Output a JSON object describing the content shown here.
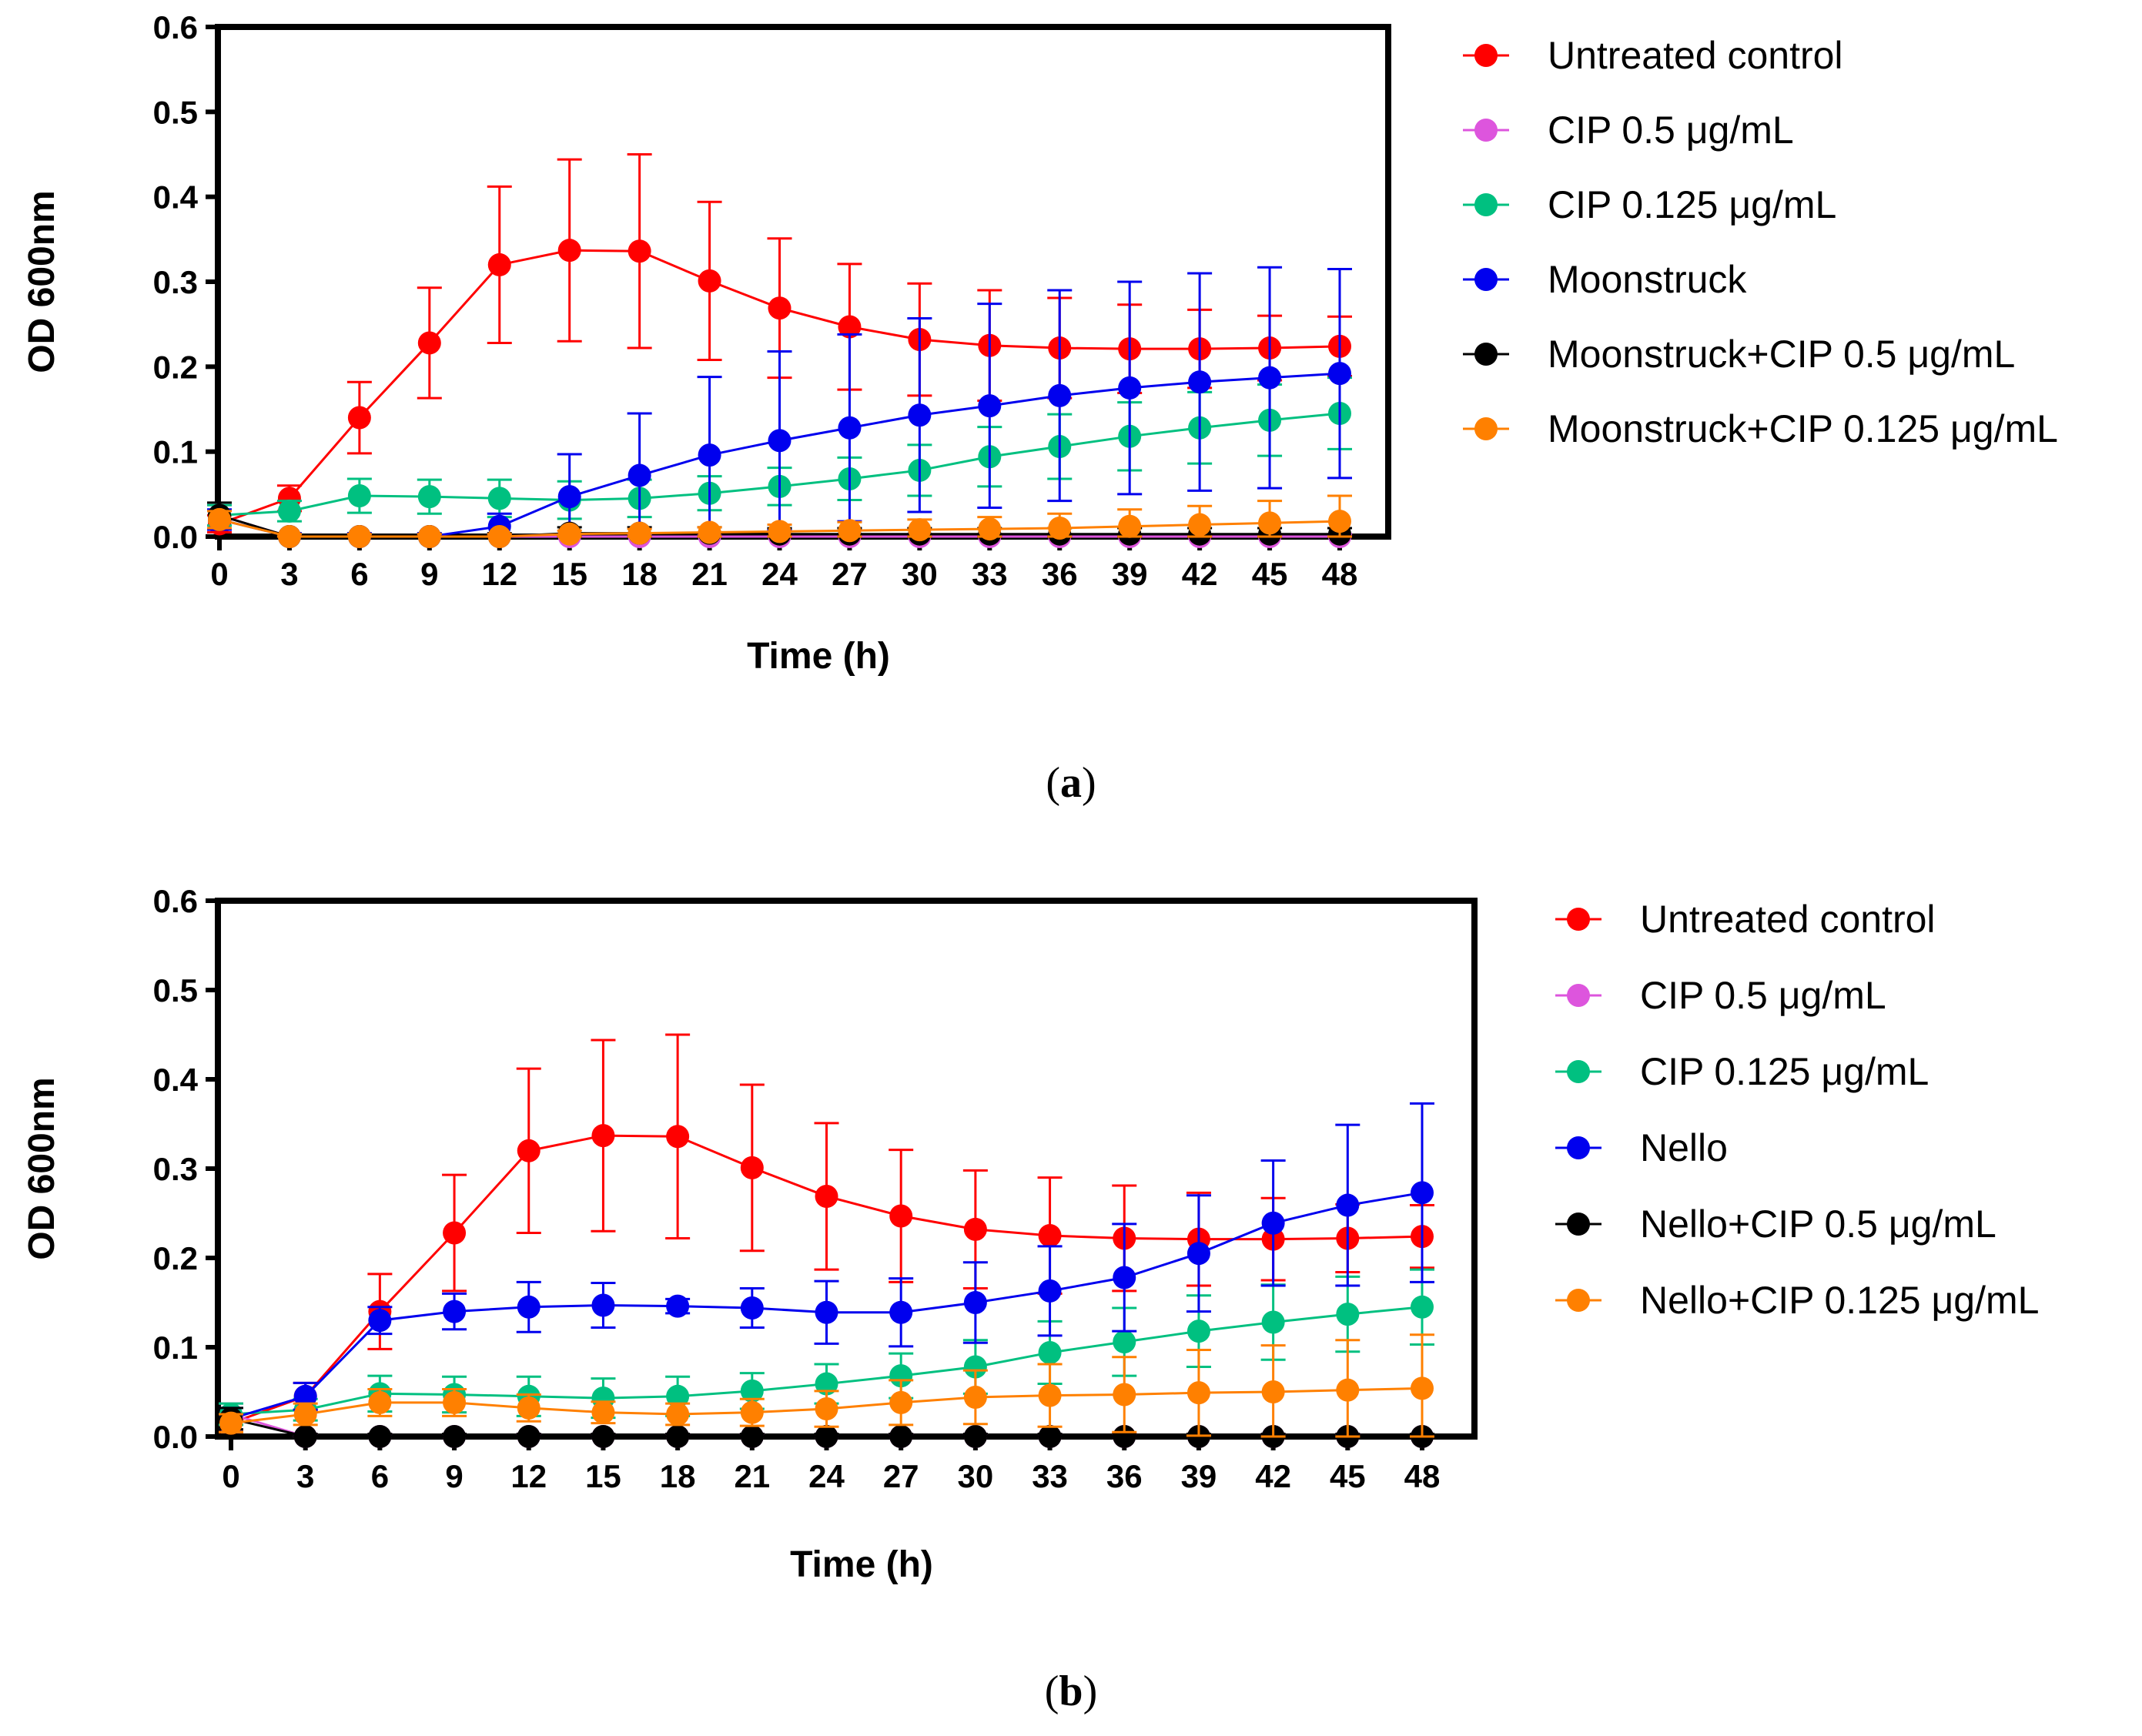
{
  "chart_data": [
    {
      "type": "line",
      "panel_label": "a",
      "xlabel": "Time (h)",
      "ylabel": "OD 600nm",
      "ylim": [
        0,
        0.6
      ],
      "y_ticks": [
        "0.0",
        "0.1",
        "0.2",
        "0.3",
        "0.4",
        "0.5",
        "0.6"
      ],
      "x": [
        0,
        3,
        6,
        9,
        12,
        15,
        18,
        21,
        24,
        27,
        30,
        33,
        36,
        39,
        42,
        45,
        48
      ],
      "x_tick_labels": [
        "0",
        "3",
        "6",
        "9",
        "12",
        "15",
        "18",
        "21",
        "24",
        "27",
        "30",
        "33",
        "36",
        "39",
        "42",
        "45",
        "48"
      ],
      "legend_position": "right",
      "series": [
        {
          "name": "Untreated control",
          "color": "#ff0000",
          "values": [
            0.015,
            0.045,
            0.14,
            0.228,
            0.32,
            0.337,
            0.336,
            0.301,
            0.269,
            0.247,
            0.232,
            0.225,
            0.222,
            0.221,
            0.221,
            0.222,
            0.224
          ],
          "errors": [
            0.01,
            0.015,
            0.042,
            0.065,
            0.092,
            0.107,
            0.114,
            0.093,
            0.082,
            0.074,
            0.066,
            0.065,
            0.059,
            0.052,
            0.046,
            0.038,
            0.035
          ]
        },
        {
          "name": "CIP 0.5 μg/mL",
          "color": "#dd55dd",
          "values": [
            0.025,
            0.0,
            0.0,
            0.0,
            0.0,
            0.0,
            0.0,
            0.0,
            0.0,
            0.0,
            0.0,
            0.0,
            0.0,
            0.0,
            0.0,
            0.0,
            0.0
          ],
          "errors": [
            0.012,
            0.003,
            0.003,
            0.003,
            0.003,
            0.003,
            0.003,
            0.003,
            0.003,
            0.003,
            0.003,
            0.003,
            0.003,
            0.003,
            0.003,
            0.003,
            0.003
          ]
        },
        {
          "name": "CIP 0.125 μg/mL",
          "color": "#00c080",
          "values": [
            0.025,
            0.03,
            0.048,
            0.047,
            0.045,
            0.043,
            0.045,
            0.051,
            0.059,
            0.068,
            0.078,
            0.094,
            0.106,
            0.118,
            0.128,
            0.137,
            0.145
          ],
          "errors": [
            0.012,
            0.012,
            0.02,
            0.02,
            0.022,
            0.022,
            0.022,
            0.02,
            0.022,
            0.025,
            0.03,
            0.035,
            0.038,
            0.04,
            0.042,
            0.042,
            0.042
          ]
        },
        {
          "name": "Moonstruck",
          "color": "#0000ee",
          "values": [
            0.02,
            0.0,
            0.0,
            0.0,
            0.012,
            0.047,
            0.072,
            0.096,
            0.113,
            0.128,
            0.143,
            0.154,
            0.166,
            0.175,
            0.182,
            0.187,
            0.192
          ],
          "errors": [
            0.012,
            0.004,
            0.004,
            0.004,
            0.015,
            0.05,
            0.073,
            0.092,
            0.105,
            0.11,
            0.114,
            0.12,
            0.124,
            0.125,
            0.128,
            0.13,
            0.123
          ]
        },
        {
          "name": "Moonstruck+CIP 0.5 μg/mL",
          "color": "#000000",
          "values": [
            0.025,
            0.0,
            0.0,
            0.0,
            0.0,
            0.004,
            0.004,
            0.004,
            0.003,
            0.003,
            0.003,
            0.003,
            0.003,
            0.003,
            0.003,
            0.003,
            0.003
          ],
          "errors": [
            0.015,
            0.003,
            0.003,
            0.003,
            0.004,
            0.007,
            0.007,
            0.007,
            0.007,
            0.007,
            0.007,
            0.007,
            0.007,
            0.007,
            0.007,
            0.007,
            0.007
          ]
        },
        {
          "name": "Moonstruck+CIP 0.125 μg/mL",
          "color": "#ff8000",
          "values": [
            0.02,
            0.0,
            0.0,
            0.0,
            0.0,
            0.003,
            0.004,
            0.005,
            0.006,
            0.007,
            0.008,
            0.009,
            0.01,
            0.012,
            0.014,
            0.016,
            0.018
          ],
          "errors": [
            0.01,
            0.003,
            0.003,
            0.003,
            0.003,
            0.004,
            0.005,
            0.006,
            0.008,
            0.01,
            0.012,
            0.014,
            0.017,
            0.02,
            0.022,
            0.026,
            0.03
          ]
        }
      ]
    },
    {
      "type": "line",
      "panel_label": "b",
      "xlabel": "Time (h)",
      "ylabel": "OD 600nm",
      "ylim": [
        0,
        0.6
      ],
      "y_ticks": [
        "0.0",
        "0.1",
        "0.2",
        "0.3",
        "0.4",
        "0.5",
        "0.6"
      ],
      "x": [
        0,
        3,
        6,
        9,
        12,
        15,
        18,
        21,
        24,
        27,
        30,
        33,
        36,
        39,
        42,
        45,
        48
      ],
      "x_tick_labels": [
        "0",
        "3",
        "6",
        "9",
        "12",
        "15",
        "18",
        "21",
        "24",
        "27",
        "30",
        "33",
        "36",
        "39",
        "42",
        "45",
        "48"
      ],
      "legend_position": "right",
      "series": [
        {
          "name": "Untreated control",
          "color": "#ff0000",
          "values": [
            0.015,
            0.045,
            0.14,
            0.228,
            0.32,
            0.337,
            0.336,
            0.301,
            0.269,
            0.247,
            0.232,
            0.225,
            0.222,
            0.221,
            0.221,
            0.222,
            0.224
          ],
          "errors": [
            0.01,
            0.015,
            0.042,
            0.065,
            0.092,
            0.107,
            0.114,
            0.093,
            0.082,
            0.074,
            0.066,
            0.065,
            0.059,
            0.052,
            0.046,
            0.038,
            0.035
          ]
        },
        {
          "name": "CIP 0.5 μg/mL",
          "color": "#dd55dd",
          "values": [
            0.025,
            0.0,
            0.0,
            0.0,
            0.0,
            0.0,
            0.0,
            0.0,
            0.0,
            0.0,
            0.0,
            0.0,
            0.0,
            0.0,
            0.0,
            0.0,
            0.0
          ],
          "errors": [
            0.012,
            0.003,
            0.003,
            0.003,
            0.003,
            0.003,
            0.003,
            0.003,
            0.003,
            0.003,
            0.003,
            0.003,
            0.003,
            0.003,
            0.003,
            0.003,
            0.003
          ]
        },
        {
          "name": "CIP 0.125 μg/mL",
          "color": "#00c080",
          "values": [
            0.025,
            0.03,
            0.048,
            0.047,
            0.045,
            0.043,
            0.045,
            0.051,
            0.059,
            0.068,
            0.078,
            0.094,
            0.106,
            0.118,
            0.128,
            0.137,
            0.145
          ],
          "errors": [
            0.012,
            0.012,
            0.02,
            0.02,
            0.022,
            0.022,
            0.022,
            0.02,
            0.022,
            0.025,
            0.03,
            0.035,
            0.038,
            0.04,
            0.042,
            0.042,
            0.042
          ]
        },
        {
          "name": "Nello",
          "color": "#0000ee",
          "values": [
            0.02,
            0.045,
            0.13,
            0.14,
            0.145,
            0.147,
            0.146,
            0.144,
            0.139,
            0.139,
            0.15,
            0.163,
            0.178,
            0.205,
            0.239,
            0.259,
            0.273
          ],
          "errors": [
            0.012,
            0.015,
            0.015,
            0.02,
            0.028,
            0.025,
            0.008,
            0.022,
            0.035,
            0.038,
            0.045,
            0.05,
            0.06,
            0.065,
            0.07,
            0.09,
            0.1
          ]
        },
        {
          "name": "Nello+CIP 0.5 μg/mL",
          "color": "#000000",
          "values": [
            0.02,
            0.0,
            0.0,
            0.0,
            0.0,
            0.0,
            0.0,
            0.0,
            0.0,
            0.0,
            0.0,
            0.0,
            0.0,
            0.0,
            0.0,
            0.0,
            0.0
          ],
          "errors": [
            0.012,
            0.003,
            0.003,
            0.003,
            0.003,
            0.003,
            0.003,
            0.003,
            0.003,
            0.003,
            0.003,
            0.003,
            0.003,
            0.003,
            0.003,
            0.003,
            0.003
          ]
        },
        {
          "name": "Nello+CIP 0.125 μg/mL",
          "color": "#ff8000",
          "values": [
            0.015,
            0.025,
            0.038,
            0.038,
            0.032,
            0.027,
            0.025,
            0.027,
            0.031,
            0.038,
            0.044,
            0.046,
            0.047,
            0.049,
            0.05,
            0.052,
            0.054
          ],
          "errors": [
            0.01,
            0.012,
            0.015,
            0.015,
            0.015,
            0.012,
            0.012,
            0.015,
            0.02,
            0.025,
            0.03,
            0.035,
            0.042,
            0.048,
            0.052,
            0.056,
            0.06
          ]
        }
      ]
    }
  ]
}
